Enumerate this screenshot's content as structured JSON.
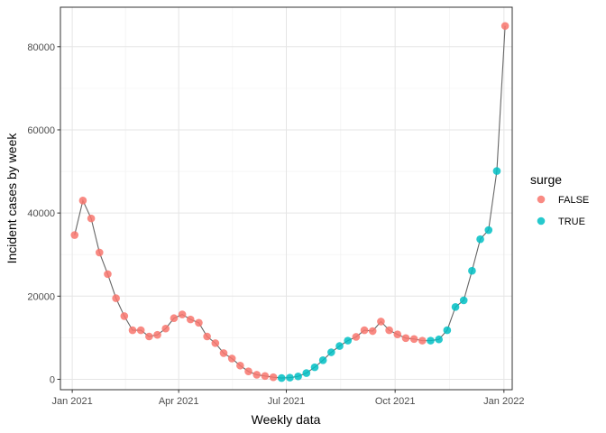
{
  "chart_data": {
    "type": "scatter",
    "title": "",
    "xlabel": "Weekly data",
    "ylabel": "Incident cases by week",
    "x_tick_labels": [
      "Jan 2021",
      "Apr 2021",
      "Jul 2021",
      "Oct 2021",
      "Jan 2022"
    ],
    "x_ticks": [
      "2021-01-01",
      "2021-04-01",
      "2021-07-01",
      "2021-10-01",
      "2022-01-01"
    ],
    "xlim": [
      "2020-12-22",
      "2022-01-08"
    ],
    "y_tick_labels": [
      "0",
      "20000",
      "40000",
      "60000",
      "80000"
    ],
    "y_ticks": [
      0,
      20000,
      40000,
      60000,
      80000
    ],
    "ylim": [
      -2500,
      89500
    ],
    "grid": true,
    "connecting_line": true,
    "legend": {
      "title": "surge",
      "placement": "right",
      "entries": [
        {
          "label": "FALSE",
          "color": "#F8766D"
        },
        {
          "label": "TRUE",
          "color": "#00BFC4"
        }
      ]
    },
    "line_color": "#666666",
    "points": [
      {
        "date": "2021-01-03",
        "y": 34700,
        "surge": "FALSE"
      },
      {
        "date": "2021-01-10",
        "y": 43000,
        "surge": "FALSE"
      },
      {
        "date": "2021-01-17",
        "y": 38700,
        "surge": "FALSE"
      },
      {
        "date": "2021-01-24",
        "y": 30500,
        "surge": "FALSE"
      },
      {
        "date": "2021-01-31",
        "y": 25300,
        "surge": "FALSE"
      },
      {
        "date": "2021-02-07",
        "y": 19500,
        "surge": "FALSE"
      },
      {
        "date": "2021-02-14",
        "y": 15200,
        "surge": "FALSE"
      },
      {
        "date": "2021-02-21",
        "y": 11800,
        "surge": "FALSE"
      },
      {
        "date": "2021-02-28",
        "y": 11800,
        "surge": "FALSE"
      },
      {
        "date": "2021-03-07",
        "y": 10300,
        "surge": "FALSE"
      },
      {
        "date": "2021-03-14",
        "y": 10700,
        "surge": "FALSE"
      },
      {
        "date": "2021-03-21",
        "y": 12200,
        "surge": "FALSE"
      },
      {
        "date": "2021-03-28",
        "y": 14700,
        "surge": "FALSE"
      },
      {
        "date": "2021-04-04",
        "y": 15600,
        "surge": "FALSE"
      },
      {
        "date": "2021-04-11",
        "y": 14400,
        "surge": "FALSE"
      },
      {
        "date": "2021-04-18",
        "y": 13600,
        "surge": "FALSE"
      },
      {
        "date": "2021-04-25",
        "y": 10300,
        "surge": "FALSE"
      },
      {
        "date": "2021-05-02",
        "y": 8700,
        "surge": "FALSE"
      },
      {
        "date": "2021-05-09",
        "y": 6300,
        "surge": "FALSE"
      },
      {
        "date": "2021-05-16",
        "y": 5000,
        "surge": "FALSE"
      },
      {
        "date": "2021-05-23",
        "y": 3300,
        "surge": "FALSE"
      },
      {
        "date": "2021-05-30",
        "y": 1900,
        "surge": "FALSE"
      },
      {
        "date": "2021-06-06",
        "y": 1100,
        "surge": "FALSE"
      },
      {
        "date": "2021-06-13",
        "y": 800,
        "surge": "FALSE"
      },
      {
        "date": "2021-06-20",
        "y": 500,
        "surge": "FALSE"
      },
      {
        "date": "2021-06-27",
        "y": 300,
        "surge": "TRUE"
      },
      {
        "date": "2021-07-04",
        "y": 400,
        "surge": "TRUE"
      },
      {
        "date": "2021-07-11",
        "y": 700,
        "surge": "TRUE"
      },
      {
        "date": "2021-07-18",
        "y": 1500,
        "surge": "TRUE"
      },
      {
        "date": "2021-07-25",
        "y": 2900,
        "surge": "TRUE"
      },
      {
        "date": "2021-08-01",
        "y": 4600,
        "surge": "TRUE"
      },
      {
        "date": "2021-08-08",
        "y": 6500,
        "surge": "TRUE"
      },
      {
        "date": "2021-08-15",
        "y": 8000,
        "surge": "TRUE"
      },
      {
        "date": "2021-08-22",
        "y": 9300,
        "surge": "TRUE"
      },
      {
        "date": "2021-08-29",
        "y": 10200,
        "surge": "FALSE"
      },
      {
        "date": "2021-09-05",
        "y": 11800,
        "surge": "FALSE"
      },
      {
        "date": "2021-09-12",
        "y": 11600,
        "surge": "FALSE"
      },
      {
        "date": "2021-09-19",
        "y": 13900,
        "surge": "FALSE"
      },
      {
        "date": "2021-09-26",
        "y": 11800,
        "surge": "FALSE"
      },
      {
        "date": "2021-10-03",
        "y": 10800,
        "surge": "FALSE"
      },
      {
        "date": "2021-10-10",
        "y": 9900,
        "surge": "FALSE"
      },
      {
        "date": "2021-10-17",
        "y": 9700,
        "surge": "FALSE"
      },
      {
        "date": "2021-10-24",
        "y": 9300,
        "surge": "FALSE"
      },
      {
        "date": "2021-10-31",
        "y": 9300,
        "surge": "TRUE"
      },
      {
        "date": "2021-11-07",
        "y": 9600,
        "surge": "TRUE"
      },
      {
        "date": "2021-11-14",
        "y": 11800,
        "surge": "TRUE"
      },
      {
        "date": "2021-11-21",
        "y": 17400,
        "surge": "TRUE"
      },
      {
        "date": "2021-11-28",
        "y": 19000,
        "surge": "TRUE"
      },
      {
        "date": "2021-12-05",
        "y": 26100,
        "surge": "TRUE"
      },
      {
        "date": "2021-12-12",
        "y": 33700,
        "surge": "TRUE"
      },
      {
        "date": "2021-12-19",
        "y": 35900,
        "surge": "TRUE"
      },
      {
        "date": "2021-12-26",
        "y": 50100,
        "surge": "TRUE"
      },
      {
        "date": "2022-01-02",
        "y": 85000,
        "surge": "FALSE"
      }
    ]
  }
}
